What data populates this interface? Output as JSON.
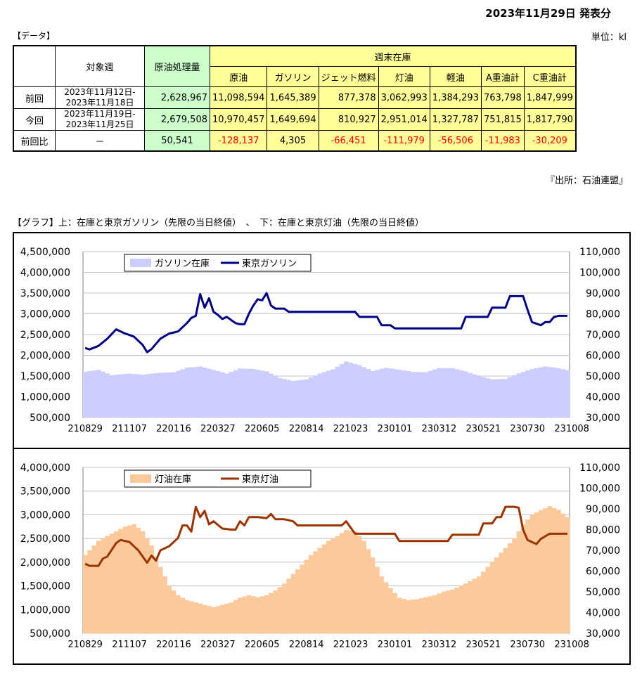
{
  "header": {
    "pub_date": "2023年11月29日 発表分",
    "data_label": "【データ】",
    "unit": "単位：kl",
    "source": "『出所：石油連盟』",
    "graph_title": "【グラフ】上：在庫と東京ガソリン（先限の当日終値）　、　下：在庫と東京灯油（先限の当日終値）"
  },
  "table": {
    "week_header": "対象週",
    "crude_header": "原油処理量",
    "inventory_header": "週末在庫",
    "columns": [
      "原油",
      "ガソリン",
      "ジェット燃料",
      "灯油",
      "軽油",
      "A重油計",
      "C重油計"
    ],
    "rows": [
      {
        "label": "前回",
        "week1": "2023年11月12日-",
        "week2": "2023年11月18日",
        "crude": "2,628,967",
        "values": [
          "11,098,594",
          "1,645,389",
          "877,378",
          "3,062,993",
          "1,384,293",
          "763,798",
          "1,847,999"
        ]
      },
      {
        "label": "今回",
        "week1": "2023年11月19日-",
        "week2": "2023年11月25日",
        "crude": "2,679,508",
        "values": [
          "10,970,457",
          "1,649,694",
          "810,927",
          "2,951,014",
          "1,327,787",
          "751,815",
          "1,817,790"
        ]
      }
    ],
    "diff": {
      "label": "前回比",
      "week": "－",
      "crude": "50,541",
      "values": [
        "-128,137",
        "4,305",
        "-66,451",
        "-111,979",
        "-56,506",
        "-11,983",
        "-30,209"
      ]
    }
  },
  "chart_data": [
    {
      "type": "bar+line",
      "x_tick_labels": [
        "210829",
        "211107",
        "220116",
        "220327",
        "220605",
        "220814",
        "221023",
        "230101",
        "230312",
        "230521",
        "230730",
        "231008"
      ],
      "y_left": {
        "min": 500000,
        "max": 4500000,
        "step": 500000,
        "ticks": [
          "500,000",
          "1,000,000",
          "1,500,000",
          "2,000,000",
          "2,500,000",
          "3,000,000",
          "3,500,000",
          "4,000,000",
          "4,500,000"
        ]
      },
      "y_right": {
        "min": 30000,
        "max": 110000,
        "step": 10000,
        "ticks": [
          "30,000",
          "40,000",
          "50,000",
          "60,000",
          "70,000",
          "80,000",
          "90,000",
          "100,000",
          "110,000"
        ]
      },
      "legend": {
        "position": "top-left",
        "bar": "ガソリン在庫",
        "line": "東京ガソリン"
      },
      "colors": {
        "bar": "#ccccff",
        "line": "#000080",
        "grid": "#c0c0c0"
      },
      "bar_series": {
        "name": "ガソリン在庫",
        "axis": "left",
        "anchors": [
          [
            0,
            1600000
          ],
          [
            3,
            1650000
          ],
          [
            6,
            1520000
          ],
          [
            10,
            1560000
          ],
          [
            13,
            1530000
          ],
          [
            16,
            1570000
          ],
          [
            20,
            1590000
          ],
          [
            23,
            1700000
          ],
          [
            26,
            1730000
          ],
          [
            29,
            1650000
          ],
          [
            32,
            1560000
          ],
          [
            35,
            1680000
          ],
          [
            38,
            1670000
          ],
          [
            41,
            1610000
          ],
          [
            44,
            1450000
          ],
          [
            47,
            1380000
          ],
          [
            50,
            1420000
          ],
          [
            53,
            1560000
          ],
          [
            56,
            1660000
          ],
          [
            59,
            1850000
          ],
          [
            62,
            1760000
          ],
          [
            65,
            1620000
          ],
          [
            68,
            1700000
          ],
          [
            71,
            1650000
          ],
          [
            74,
            1600000
          ],
          [
            77,
            1590000
          ],
          [
            80,
            1690000
          ],
          [
            83,
            1690000
          ],
          [
            86,
            1610000
          ],
          [
            89,
            1500000
          ],
          [
            92,
            1420000
          ],
          [
            95,
            1430000
          ],
          [
            98,
            1560000
          ],
          [
            101,
            1670000
          ],
          [
            104,
            1730000
          ],
          [
            107,
            1690000
          ],
          [
            109,
            1640000
          ]
        ]
      },
      "line_series": {
        "name": "東京ガソリン",
        "axis": "right",
        "anchors": [
          [
            0,
            63500
          ],
          [
            1,
            62800
          ],
          [
            3,
            64500
          ],
          [
            5,
            68000
          ],
          [
            7,
            72500
          ],
          [
            9,
            70500
          ],
          [
            11,
            69000
          ],
          [
            13,
            65000
          ],
          [
            14,
            61500
          ],
          [
            15,
            63000
          ],
          [
            17,
            68000
          ],
          [
            19,
            70500
          ],
          [
            21,
            71500
          ],
          [
            23,
            75500
          ],
          [
            24,
            78000
          ],
          [
            25,
            79000
          ],
          [
            26,
            89500
          ],
          [
            27,
            83000
          ],
          [
            28,
            87500
          ],
          [
            29,
            81000
          ],
          [
            30,
            79500
          ],
          [
            31,
            77500
          ],
          [
            32,
            78500
          ],
          [
            33,
            77000
          ],
          [
            34,
            75500
          ],
          [
            35,
            75000
          ],
          [
            36,
            75000
          ],
          [
            37,
            80000
          ],
          [
            38,
            84000
          ],
          [
            39,
            87000
          ],
          [
            40,
            86500
          ],
          [
            41,
            90000
          ],
          [
            42,
            84000
          ],
          [
            43,
            82500
          ],
          [
            44,
            82500
          ],
          [
            45,
            82500
          ],
          [
            46,
            81000
          ],
          [
            50,
            81000
          ],
          [
            55,
            81000
          ],
          [
            60,
            81000
          ],
          [
            61,
            81000
          ],
          [
            62,
            78500
          ],
          [
            65,
            78500
          ],
          [
            66,
            78500
          ],
          [
            67,
            74500
          ],
          [
            69,
            74500
          ],
          [
            70,
            73000
          ],
          [
            75,
            73000
          ],
          [
            80,
            73000
          ],
          [
            84,
            73000
          ],
          [
            85,
            73000
          ],
          [
            86,
            78500
          ],
          [
            90,
            78500
          ],
          [
            91,
            78500
          ],
          [
            92,
            83000
          ],
          [
            94,
            83000
          ],
          [
            95,
            83000
          ],
          [
            96,
            88500
          ],
          [
            98,
            88500
          ],
          [
            99,
            88500
          ],
          [
            100,
            82000
          ],
          [
            101,
            76000
          ],
          [
            103,
            74500
          ],
          [
            104,
            76000
          ],
          [
            105,
            76000
          ],
          [
            106,
            78500
          ],
          [
            107,
            79000
          ]
        ]
      }
    },
    {
      "type": "bar+line",
      "x_tick_labels": [
        "210829",
        "211107",
        "220116",
        "220327",
        "220605",
        "220814",
        "221023",
        "230101",
        "230312",
        "230521",
        "230730",
        "231008"
      ],
      "y_left": {
        "min": 500000,
        "max": 4000000,
        "step": 500000,
        "ticks": [
          "500,000",
          "1,000,000",
          "1,500,000",
          "2,000,000",
          "2,500,000",
          "3,000,000",
          "3,500,000",
          "4,000,000"
        ]
      },
      "y_right": {
        "min": 30000,
        "max": 110000,
        "step": 10000,
        "ticks": [
          "30,000",
          "40,000",
          "50,000",
          "60,000",
          "70,000",
          "80,000",
          "90,000",
          "100,000",
          "110,000"
        ]
      },
      "legend": {
        "position": "top-left",
        "bar": "灯油在庫",
        "line": "東京灯油"
      },
      "colors": {
        "bar": "#fcc99b",
        "line": "#993300",
        "grid": "#c0c0c0"
      },
      "bar_series": {
        "name": "灯油在庫",
        "axis": "left",
        "anchors": [
          [
            0,
            2150000
          ],
          [
            3,
            2450000
          ],
          [
            6,
            2600000
          ],
          [
            9,
            2750000
          ],
          [
            11,
            2800000
          ],
          [
            13,
            2650000
          ],
          [
            15,
            2350000
          ],
          [
            17,
            1900000
          ],
          [
            19,
            1500000
          ],
          [
            21,
            1300000
          ],
          [
            23,
            1200000
          ],
          [
            25,
            1150000
          ],
          [
            27,
            1100000
          ],
          [
            29,
            1050000
          ],
          [
            31,
            1100000
          ],
          [
            33,
            1150000
          ],
          [
            35,
            1250000
          ],
          [
            37,
            1300000
          ],
          [
            39,
            1260000
          ],
          [
            41,
            1300000
          ],
          [
            43,
            1400000
          ],
          [
            45,
            1550000
          ],
          [
            47,
            1750000
          ],
          [
            49,
            1950000
          ],
          [
            51,
            2150000
          ],
          [
            53,
            2300000
          ],
          [
            55,
            2450000
          ],
          [
            57,
            2550000
          ],
          [
            59,
            2680000
          ],
          [
            61,
            2650000
          ],
          [
            63,
            2450000
          ],
          [
            65,
            2100000
          ],
          [
            67,
            1700000
          ],
          [
            69,
            1450000
          ],
          [
            71,
            1250000
          ],
          [
            73,
            1200000
          ],
          [
            75,
            1220000
          ],
          [
            77,
            1260000
          ],
          [
            79,
            1300000
          ],
          [
            81,
            1380000
          ],
          [
            83,
            1420000
          ],
          [
            85,
            1500000
          ],
          [
            87,
            1600000
          ],
          [
            89,
            1700000
          ],
          [
            91,
            1900000
          ],
          [
            93,
            2100000
          ],
          [
            95,
            2300000
          ],
          [
            97,
            2500000
          ],
          [
            99,
            2800000
          ],
          [
            101,
            3000000
          ],
          [
            103,
            3100000
          ],
          [
            105,
            3180000
          ],
          [
            107,
            3100000
          ],
          [
            109,
            2950000
          ]
        ]
      },
      "line_series": {
        "name": "東京灯油",
        "axis": "right",
        "anchors": [
          [
            0,
            63500
          ],
          [
            1,
            62500
          ],
          [
            3,
            62500
          ],
          [
            4,
            66000
          ],
          [
            5,
            67000
          ],
          [
            7,
            73500
          ],
          [
            8,
            75000
          ],
          [
            10,
            74000
          ],
          [
            12,
            70000
          ],
          [
            13,
            67000
          ],
          [
            14,
            64000
          ],
          [
            15,
            67500
          ],
          [
            16,
            65000
          ],
          [
            17,
            70000
          ],
          [
            19,
            72000
          ],
          [
            21,
            76000
          ],
          [
            22,
            82000
          ],
          [
            23,
            82000
          ],
          [
            24,
            79000
          ],
          [
            25,
            91000
          ],
          [
            26,
            86000
          ],
          [
            27,
            89000
          ],
          [
            28,
            82500
          ],
          [
            29,
            84000
          ],
          [
            31,
            80500
          ],
          [
            33,
            80000
          ],
          [
            34,
            80000
          ],
          [
            35,
            84000
          ],
          [
            36,
            82000
          ],
          [
            37,
            86000
          ],
          [
            39,
            86000
          ],
          [
            41,
            85500
          ],
          [
            42,
            87500
          ],
          [
            43,
            85000
          ],
          [
            45,
            85000
          ],
          [
            46,
            84500
          ],
          [
            47,
            84000
          ],
          [
            48,
            82000
          ],
          [
            51,
            82000
          ],
          [
            55,
            82000
          ],
          [
            58,
            82000
          ],
          [
            59,
            84000
          ],
          [
            60,
            81000
          ],
          [
            61,
            78000
          ],
          [
            65,
            78000
          ],
          [
            70,
            78000
          ],
          [
            71,
            74500
          ],
          [
            75,
            74500
          ],
          [
            80,
            74500
          ],
          [
            82,
            74500
          ],
          [
            83,
            77500
          ],
          [
            88,
            77500
          ],
          [
            89,
            77500
          ],
          [
            90,
            83000
          ],
          [
            92,
            83000
          ],
          [
            93,
            86000
          ],
          [
            94,
            86000
          ],
          [
            95,
            91000
          ],
          [
            97,
            91000
          ],
          [
            98,
            90500
          ],
          [
            99,
            80000
          ],
          [
            100,
            75000
          ],
          [
            102,
            73000
          ],
          [
            103,
            75500
          ],
          [
            105,
            78000
          ],
          [
            107,
            78000
          ]
        ]
      }
    }
  ]
}
